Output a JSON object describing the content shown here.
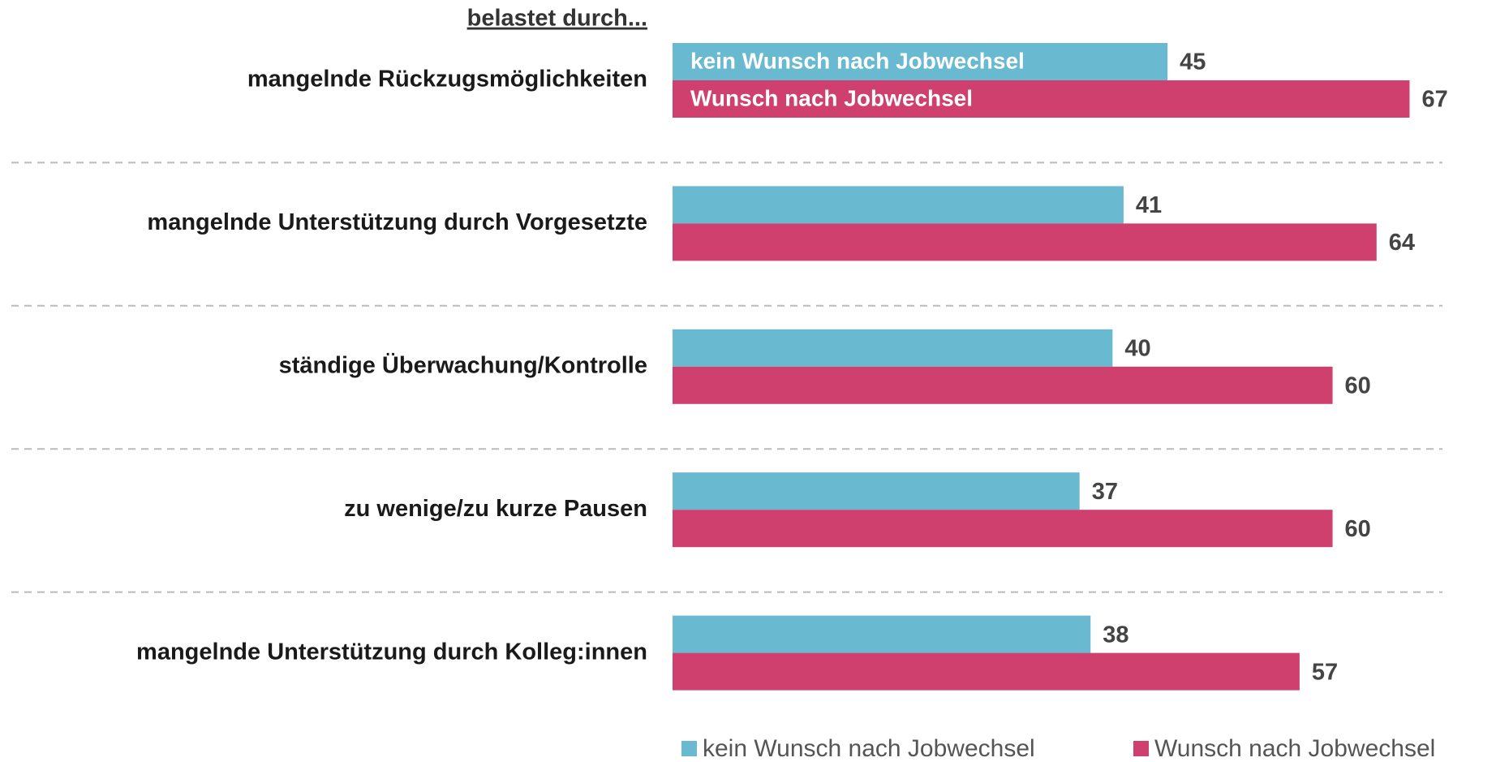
{
  "chart_data": {
    "type": "bar",
    "orientation": "horizontal",
    "y_axis_title": "belastet durch...",
    "categories": [
      "mangelnde Rückzugsmöglichkeiten",
      "mangelnde Unterstützung durch Vorgesetzte",
      "ständige Überwachung/Kontrolle",
      "zu wenige/zu kurze Pausen",
      "mangelnde Unterstützung durch Kolleg:innen"
    ],
    "series": [
      {
        "name": "kein Wunsch nach Jobwechsel",
        "color": "#69b9d0",
        "values": [
          45,
          41,
          40,
          37,
          38
        ]
      },
      {
        "name": "Wunsch nach Jobwechsel",
        "color": "#cf406f",
        "values": [
          67,
          64,
          60,
          60,
          57
        ]
      }
    ],
    "legend": "bottom-right"
  }
}
